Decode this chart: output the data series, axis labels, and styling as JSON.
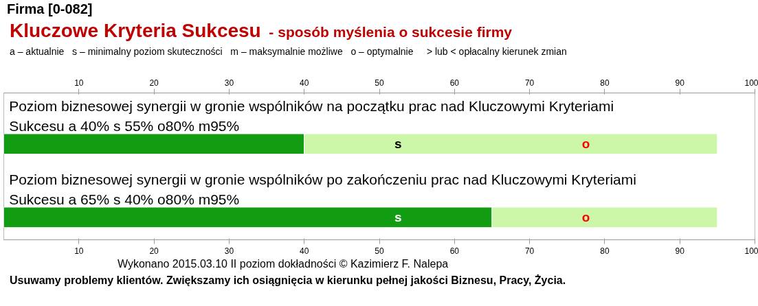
{
  "chart_data": {
    "type": "bar",
    "orientation": "horizontal",
    "stacked": true,
    "title": "Kluczowe Kryteria Sukcesu",
    "subtitle": "- sposób myślenia o sukcesie firmy",
    "categories": [
      "Poziom biznesowej synergii w gronie wspólników na początku prac nad Kluczowymi Kryteriami Sukcesu  a 40%  s 55%  o80% m95%",
      "Poziom biznesowej synergii w gronie wspólników po zakończeniu prac nad Kluczowymi Kryteriami Sukcesu a 65%  s 40%  o80% m95%"
    ],
    "series": [
      {
        "color": "#119c11",
        "values": [
          40,
          65
        ]
      },
      {
        "color": "#ccf7a8",
        "values": [
          55,
          30
        ]
      }
    ],
    "xlim": [
      0,
      100
    ],
    "xticks": [
      10,
      20,
      30,
      40,
      50,
      60,
      70,
      80,
      90,
      100
    ],
    "x2lim": [
      0,
      100
    ],
    "x2ticks": [
      10,
      20,
      30,
      40,
      50,
      60,
      70,
      80,
      90,
      100
    ],
    "grid": false,
    "annotations": [
      "Firma [0-082]",
      "a – aktualnie   s – minimalny poziom skuteczności   m – maksymalnie możliwe   o – optymalnie     > lub < opłacalny kierunek zmian",
      "s",
      "o",
      "s",
      "o",
      "Wykonano 2015.03.10  II poziom dokładności   © Kazimierz F. Nalepa",
      "Usuwamy problemy klientów. Zwiększamy ich osiągnięcia w kierunku pełnej jakości Biznesu, Pracy, Życia."
    ]
  }
}
